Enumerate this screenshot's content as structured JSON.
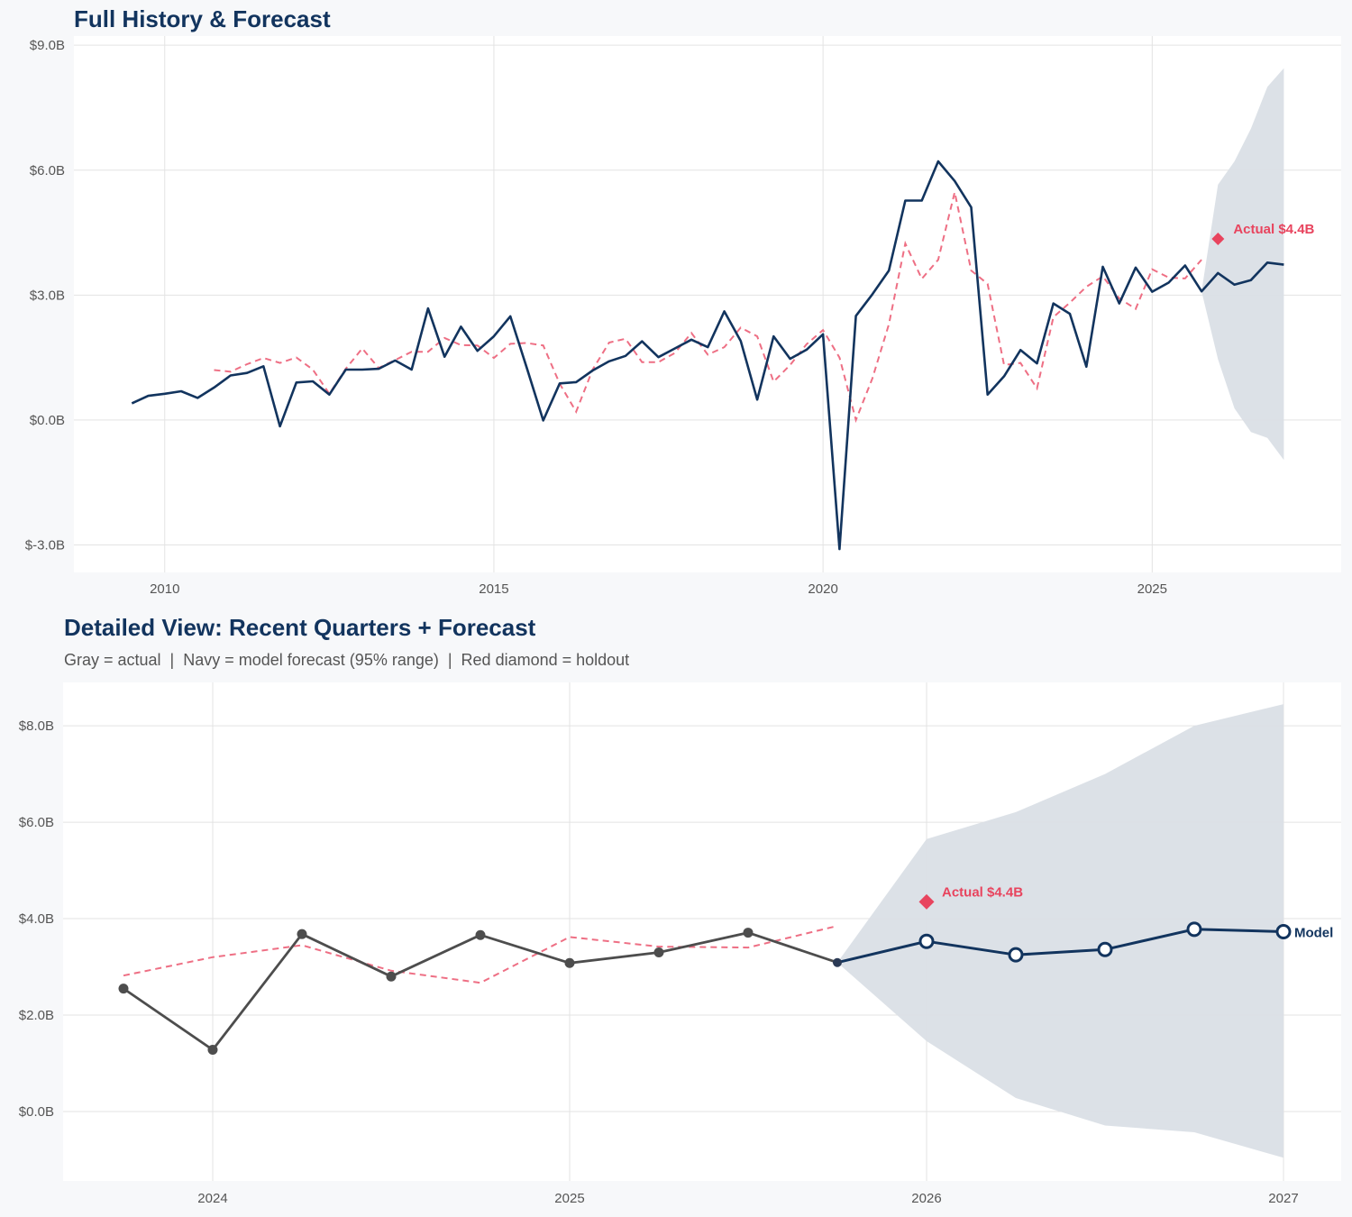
{
  "chart_data": [
    {
      "type": "line",
      "title": "Full History & Forecast",
      "xlim": [
        "2008-08-15",
        "2027-11-15"
      ],
      "ylim": [
        -3.66,
        9.22
      ],
      "x_ticks": [
        {
          "x": "2010Q1",
          "label": "2010"
        },
        {
          "x": "2015Q1",
          "label": "2015"
        },
        {
          "x": "2020Q1",
          "label": "2020"
        },
        {
          "x": "2025Q1",
          "label": "2025"
        }
      ],
      "y_ticks": [
        {
          "y": 9,
          "label": "$9.0B"
        },
        {
          "y": 6,
          "label": "$6.0B"
        },
        {
          "y": 3,
          "label": "$3.0B"
        },
        {
          "y": 0,
          "label": "$0.0B"
        },
        {
          "y": -3,
          "label": "$-3.0B"
        }
      ],
      "grid": true,
      "show_markers": false,
      "annotation": {
        "x": "2026Q1",
        "y": 4.35,
        "label": "Actual $4.4B"
      }
    },
    {
      "type": "line",
      "title": "Detailed View: Recent Quarters + Forecast",
      "subtitle": "Gray = actual  |  Navy = model forecast (95% range)  |  Red diamond = holdout",
      "xlim": [
        "2023-08-01",
        "2027-03-01"
      ],
      "ylim": [
        -1.44,
        8.9
      ],
      "x_ticks": [
        {
          "x": "2024Q1",
          "label": "2024"
        },
        {
          "x": "2025Q1",
          "label": "2025"
        },
        {
          "x": "2026Q1",
          "label": "2026"
        },
        {
          "x": "2027Q1",
          "label": "2027"
        }
      ],
      "y_ticks": [
        {
          "y": 8,
          "label": "$8.0B"
        },
        {
          "y": 6,
          "label": "$6.0B"
        },
        {
          "y": 4,
          "label": "$4.0B"
        },
        {
          "y": 2,
          "label": "$2.0B"
        },
        {
          "y": 0,
          "label": "$0.0B"
        }
      ],
      "grid": true,
      "show_markers": true,
      "view_from": "2023Q4",
      "annotation": {
        "x": "2026Q1",
        "y": 4.35,
        "label": "Actual $4.4B"
      },
      "end_label": "Model"
    }
  ],
  "series": {
    "actual": [
      [
        "2009Q3",
        0.4
      ],
      [
        "2009Q4",
        0.58
      ],
      [
        "2010Q1",
        0.63
      ],
      [
        "2010Q2",
        0.69
      ],
      [
        "2010Q3",
        0.53
      ],
      [
        "2010Q4",
        0.78
      ],
      [
        "2011Q1",
        1.07
      ],
      [
        "2011Q2",
        1.13
      ],
      [
        "2011Q3",
        1.29
      ],
      [
        "2011Q4",
        -0.15
      ],
      [
        "2012Q1",
        0.9
      ],
      [
        "2012Q2",
        0.93
      ],
      [
        "2012Q3",
        0.61
      ],
      [
        "2012Q4",
        1.21
      ],
      [
        "2013Q1",
        1.21
      ],
      [
        "2013Q2",
        1.23
      ],
      [
        "2013Q3",
        1.43
      ],
      [
        "2013Q4",
        1.21
      ],
      [
        "2014Q1",
        2.68
      ],
      [
        "2014Q2",
        1.52
      ],
      [
        "2014Q3",
        2.24
      ],
      [
        "2014Q4",
        1.66
      ],
      [
        "2015Q1",
        2.01
      ],
      [
        "2015Q2",
        2.49
      ],
      [
        "2015Q3",
        1.25
      ],
      [
        "2015Q4",
        -0.01
      ],
      [
        "2016Q1",
        0.88
      ],
      [
        "2016Q2",
        0.91
      ],
      [
        "2016Q3",
        1.19
      ],
      [
        "2016Q4",
        1.41
      ],
      [
        "2017Q1",
        1.54
      ],
      [
        "2017Q2",
        1.89
      ],
      [
        "2017Q3",
        1.51
      ],
      [
        "2017Q4",
        1.72
      ],
      [
        "2018Q1",
        1.93
      ],
      [
        "2018Q2",
        1.75
      ],
      [
        "2018Q3",
        2.61
      ],
      [
        "2018Q4",
        1.9
      ],
      [
        "2019Q1",
        0.49
      ],
      [
        "2019Q2",
        2.01
      ],
      [
        "2019Q3",
        1.47
      ],
      [
        "2019Q4",
        1.69
      ],
      [
        "2020Q1",
        2.06
      ],
      [
        "2020Q2",
        -3.1
      ],
      [
        "2020Q3",
        2.5
      ],
      [
        "2020Q4",
        3.02
      ],
      [
        "2021Q1",
        3.59
      ],
      [
        "2021Q2",
        5.27
      ],
      [
        "2021Q3",
        5.27
      ],
      [
        "2021Q4",
        6.21
      ],
      [
        "2022Q1",
        5.74
      ],
      [
        "2022Q2",
        5.11
      ],
      [
        "2022Q3",
        0.61
      ],
      [
        "2022Q4",
        1.05
      ],
      [
        "2023Q1",
        1.68
      ],
      [
        "2023Q2",
        1.36
      ],
      [
        "2023Q3",
        2.8
      ],
      [
        "2023Q4",
        2.55
      ],
      [
        "2024Q1",
        1.28
      ],
      [
        "2024Q2",
        3.68
      ],
      [
        "2024Q3",
        2.8
      ],
      [
        "2024Q4",
        3.66
      ],
      [
        "2025Q1",
        3.08
      ],
      [
        "2025Q2",
        3.3
      ],
      [
        "2025Q3",
        3.71
      ],
      [
        "2025Q4",
        3.09
      ]
    ],
    "fitted": [
      [
        "2010Q4",
        1.2
      ],
      [
        "2011Q1",
        1.16
      ],
      [
        "2011Q2",
        1.34
      ],
      [
        "2011Q3",
        1.49
      ],
      [
        "2011Q4",
        1.37
      ],
      [
        "2012Q1",
        1.5
      ],
      [
        "2012Q2",
        1.21
      ],
      [
        "2012Q3",
        0.63
      ],
      [
        "2012Q4",
        1.23
      ],
      [
        "2013Q1",
        1.72
      ],
      [
        "2013Q2",
        1.25
      ],
      [
        "2013Q3",
        1.44
      ],
      [
        "2013Q4",
        1.64
      ],
      [
        "2014Q1",
        1.64
      ],
      [
        "2014Q2",
        1.97
      ],
      [
        "2014Q3",
        1.8
      ],
      [
        "2014Q4",
        1.79
      ],
      [
        "2015Q1",
        1.49
      ],
      [
        "2015Q2",
        1.83
      ],
      [
        "2015Q3",
        1.85
      ],
      [
        "2015Q4",
        1.79
      ],
      [
        "2016Q1",
        0.87
      ],
      [
        "2016Q2",
        0.2
      ],
      [
        "2016Q3",
        1.21
      ],
      [
        "2016Q4",
        1.86
      ],
      [
        "2017Q1",
        1.95
      ],
      [
        "2017Q2",
        1.39
      ],
      [
        "2017Q3",
        1.39
      ],
      [
        "2017Q4",
        1.61
      ],
      [
        "2018Q1",
        2.09
      ],
      [
        "2018Q2",
        1.57
      ],
      [
        "2018Q3",
        1.75
      ],
      [
        "2018Q4",
        2.22
      ],
      [
        "2019Q1",
        2.01
      ],
      [
        "2019Q2",
        0.92
      ],
      [
        "2019Q3",
        1.32
      ],
      [
        "2019Q4",
        1.82
      ],
      [
        "2020Q1",
        2.16
      ],
      [
        "2020Q2",
        1.5
      ],
      [
        "2020Q3",
        0.0
      ],
      [
        "2020Q4",
        1.0
      ],
      [
        "2021Q1",
        2.3
      ],
      [
        "2021Q2",
        4.24
      ],
      [
        "2021Q3",
        3.39
      ],
      [
        "2021Q4",
        3.85
      ],
      [
        "2022Q1",
        5.47
      ],
      [
        "2022Q2",
        3.59
      ],
      [
        "2022Q3",
        3.27
      ],
      [
        "2022Q4",
        1.32
      ],
      [
        "2023Q1",
        1.37
      ],
      [
        "2023Q2",
        0.76
      ],
      [
        "2023Q3",
        2.47
      ],
      [
        "2023Q4",
        2.82
      ],
      [
        "2024Q1",
        3.2
      ],
      [
        "2024Q2",
        3.45
      ],
      [
        "2024Q3",
        2.92
      ],
      [
        "2024Q4",
        2.67
      ],
      [
        "2025Q1",
        3.62
      ],
      [
        "2025Q2",
        3.42
      ],
      [
        "2025Q3",
        3.4
      ],
      [
        "2025Q4",
        3.85
      ]
    ],
    "forecast": [
      [
        "2025Q4",
        3.09
      ],
      [
        "2026Q1",
        3.53
      ],
      [
        "2026Q2",
        3.25
      ],
      [
        "2026Q3",
        3.36
      ],
      [
        "2026Q4",
        3.78
      ],
      [
        "2027Q1",
        3.73
      ]
    ],
    "band_upper": [
      [
        "2025Q4",
        3.09
      ],
      [
        "2026Q1",
        5.65
      ],
      [
        "2026Q2",
        6.21
      ],
      [
        "2026Q3",
        7.0
      ],
      [
        "2026Q4",
        8.0
      ],
      [
        "2027Q1",
        8.45
      ]
    ],
    "band_lower": [
      [
        "2025Q4",
        3.09
      ],
      [
        "2026Q1",
        1.46
      ],
      [
        "2026Q2",
        0.28
      ],
      [
        "2026Q3",
        -0.29
      ],
      [
        "2026Q4",
        -0.43
      ],
      [
        "2027Q1",
        -0.96
      ]
    ]
  },
  "colors": {
    "navy": "#12345e",
    "actual_gray": "#4d4d4d",
    "fitted_red": "#ee6f84",
    "holdout_red": "#e8445e",
    "band": "#dadfe6",
    "grid": "#e3e3e3"
  }
}
